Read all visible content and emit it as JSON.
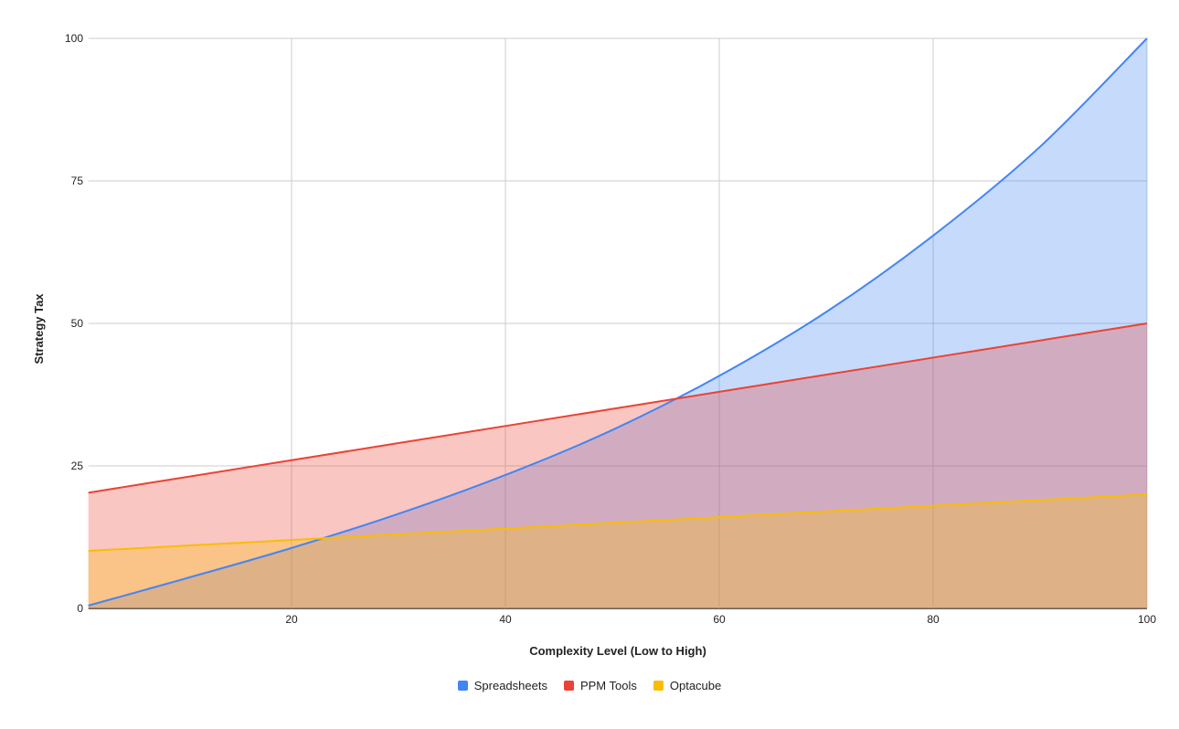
{
  "chart_data": {
    "type": "area",
    "title": "",
    "xlabel": "Complexity Level (Low to High)",
    "ylabel": "Strategy Tax",
    "xlim": [
      1,
      100
    ],
    "ylim": [
      0,
      100
    ],
    "xticks": [
      20,
      40,
      60,
      80,
      100
    ],
    "yticks": [
      0,
      25,
      50,
      75,
      100
    ],
    "grid": true,
    "legend": "bottom",
    "x": [
      1,
      10,
      20,
      30,
      40,
      50,
      60,
      70,
      80,
      90,
      100
    ],
    "series": [
      {
        "name": "Spreadsheets",
        "color": "#4285F4",
        "values": [
          0.5,
          5.2,
          10.6,
          16.6,
          23.4,
          31.3,
          40.8,
          52,
          65.4,
          81,
          100
        ]
      },
      {
        "name": "PPM Tools",
        "color": "#EA4335",
        "values": [
          20.3,
          23,
          26,
          29,
          32,
          35,
          38,
          41,
          44,
          47,
          50
        ]
      },
      {
        "name": "Optacube",
        "color": "#FBBC04",
        "values": [
          10.1,
          11,
          12,
          13,
          14,
          15,
          16,
          17,
          18,
          19,
          20
        ]
      }
    ]
  }
}
